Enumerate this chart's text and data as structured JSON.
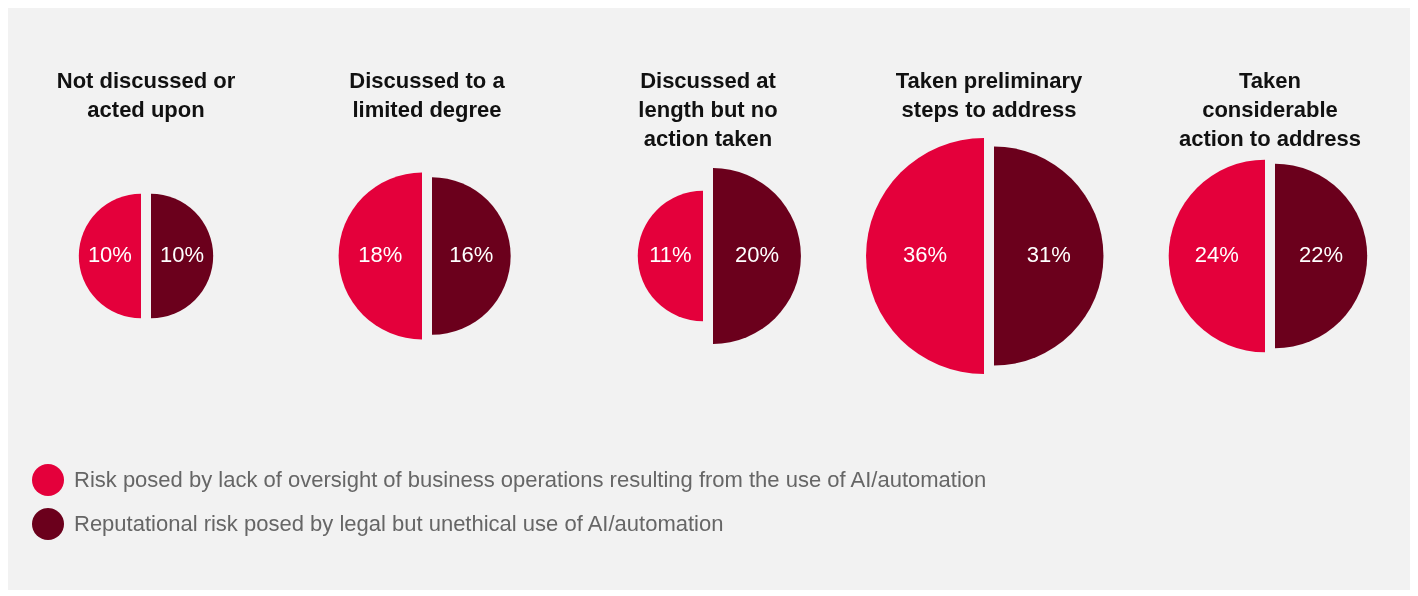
{
  "chart_data": {
    "type": "other",
    "categories": [
      "Not discussed or acted upon",
      "Discussed to a limited degree",
      "Discussed at length but no action taken",
      "Taken preliminary steps to address",
      "Taken considerable action to address"
    ],
    "series": [
      {
        "name": "Risk posed by lack of oversight of business operations resulting from the use of AI/automation",
        "color": "#e4003b",
        "values": [
          10,
          18,
          11,
          36,
          24
        ],
        "value_labels": [
          "10%",
          "18%",
          "11%",
          "36%",
          "24%"
        ]
      },
      {
        "name": "Reputational risk posed by legal but unethical use of AI/automation",
        "color": "#6b001c",
        "values": [
          10,
          16,
          20,
          31,
          22
        ],
        "value_labels": [
          "10%",
          "16%",
          "20%",
          "31%",
          "22%"
        ]
      }
    ],
    "legend": "bottom"
  }
}
